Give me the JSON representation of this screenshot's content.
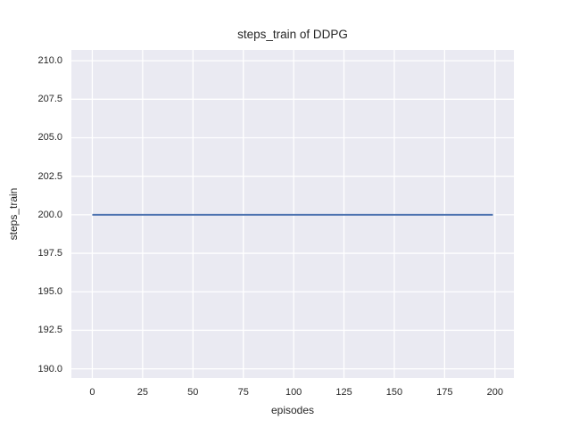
{
  "chart_data": {
    "type": "line",
    "title": "steps_train of DDPG",
    "xlabel": "episodes",
    "ylabel": "steps_train",
    "xlim": [
      -10.4,
      209.4
    ],
    "ylim": [
      189.4,
      210.7
    ],
    "xticks": [
      0,
      25,
      50,
      75,
      100,
      125,
      150,
      175,
      200
    ],
    "xtick_labels": [
      "0",
      "25",
      "50",
      "75",
      "100",
      "125",
      "150",
      "175",
      "200"
    ],
    "yticks": [
      190.0,
      192.5,
      195.0,
      197.5,
      200.0,
      202.5,
      205.0,
      207.5,
      210.0
    ],
    "ytick_labels": [
      "190.0",
      "192.5",
      "195.0",
      "197.5",
      "200.0",
      "202.5",
      "205.0",
      "207.5",
      "210.0"
    ],
    "grid": true,
    "legend": false,
    "series": [
      {
        "name": "steps_train",
        "x": [
          0,
          199
        ],
        "y": [
          200,
          200
        ],
        "color": "#4c72b0",
        "line_width": 2
      }
    ],
    "colors": {
      "figure_background": "#ffffff",
      "plot_background": "#eaeaf2",
      "grid": "#ffffff",
      "text": "#262626"
    }
  }
}
